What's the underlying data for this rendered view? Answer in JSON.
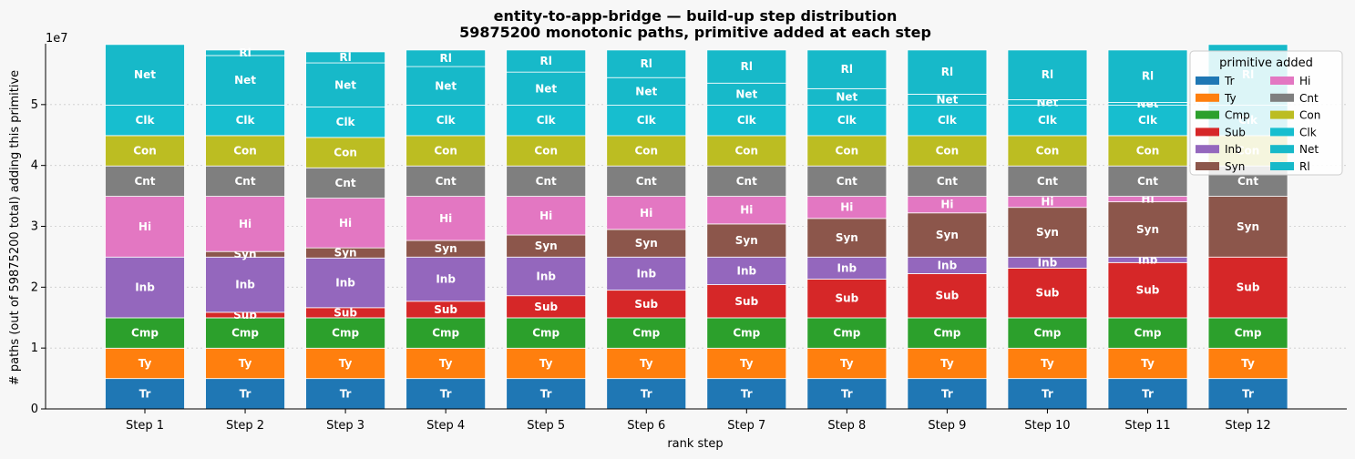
{
  "chart_data": {
    "type": "bar",
    "stacked": true,
    "title": "entity-to-app-bridge — build-up step distribution",
    "subtitle": "59875200 monotonic paths, primitive added at each step",
    "xlabel": "rank step",
    "ylabel": "# paths (out of 59875200 total) adding this primitive",
    "y_offset_label": "1e7",
    "y_scale": 10000000,
    "ylim": [
      0,
      60000000
    ],
    "yticks": [
      0,
      1,
      2,
      3,
      4,
      5
    ],
    "grid": "horizontal, dotted",
    "legend": {
      "title": "primitive added",
      "placement": "top-right",
      "columns": 2
    },
    "categories": [
      "Step 1",
      "Step 2",
      "Step 3",
      "Step 4",
      "Step 5",
      "Step 6",
      "Step 7",
      "Step 8",
      "Step 9",
      "Step 10",
      "Step 11",
      "Step 12"
    ],
    "series": [
      {
        "name": "Tr",
        "color": "#1f77b4",
        "values": [
          4989600,
          4989600,
          4989600,
          4989600,
          4989600,
          4989600,
          4989600,
          4989600,
          4989600,
          4989600,
          4989600,
          4989600
        ]
      },
      {
        "name": "Ty",
        "color": "#ff7f0e",
        "values": [
          4989600,
          4989600,
          4989600,
          4989600,
          4989600,
          4989600,
          4989600,
          4989600,
          4989600,
          4989600,
          4989600,
          4989600
        ]
      },
      {
        "name": "Cmp",
        "color": "#2ca02c",
        "values": [
          4989600,
          4989600,
          4989600,
          4989600,
          4989600,
          4989600,
          4989600,
          4989600,
          4989600,
          4989600,
          4989600,
          4989600
        ]
      },
      {
        "name": "Sub",
        "color": "#d62728",
        "values": [
          0,
          907200,
          1663200,
          2721600,
          3628800,
          4536000,
          5443200,
          6350400,
          7257600,
          8164800,
          9072000,
          9979200
        ]
      },
      {
        "name": "Inb",
        "color": "#9467bd",
        "values": [
          9979200,
          9072000,
          8164800,
          7257600,
          6350400,
          5443200,
          4536000,
          3628800,
          2721600,
          1814400,
          907200,
          0
        ]
      },
      {
        "name": "Syn",
        "color": "#8c564b",
        "values": [
          0,
          907200,
          1663200,
          2721600,
          3628800,
          4536000,
          5443200,
          6350400,
          7257600,
          8164800,
          9072000,
          9979200
        ]
      },
      {
        "name": "Hi",
        "color": "#e377c2",
        "values": [
          9979200,
          9072000,
          8164800,
          7257600,
          6350400,
          5443200,
          4536000,
          3628800,
          2721600,
          1814400,
          907200,
          0
        ]
      },
      {
        "name": "Cnt",
        "color": "#7f7f7f",
        "values": [
          4989600,
          4989600,
          4989600,
          4989600,
          4989600,
          4989600,
          4989600,
          4989600,
          4989600,
          4989600,
          4989600,
          4989600
        ]
      },
      {
        "name": "Con",
        "color": "#bcbd22",
        "values": [
          4989600,
          4989600,
          4989600,
          4989600,
          4989600,
          4989600,
          4989600,
          4989600,
          4989600,
          4989600,
          4989600,
          4989600
        ]
      },
      {
        "name": "Clk",
        "color": "#17becf",
        "values": [
          4989600,
          4989600,
          4989600,
          4989600,
          4989600,
          4989600,
          4989600,
          4989600,
          4989600,
          4989600,
          4989600,
          4989600
        ]
      },
      {
        "name": "Net",
        "color": "#17b9c9",
        "values": [
          9979200,
          8164800,
          7257600,
          6350400,
          5443200,
          4536000,
          3628800,
          2721600,
          1814400,
          907200,
          453600,
          0
        ]
      },
      {
        "name": "Rl",
        "color": "#17b9c9",
        "values": [
          0,
          907200,
          1814400,
          2721600,
          3628800,
          4536000,
          5443200,
          6350400,
          7257600,
          8164800,
          8618400,
          9979200
        ]
      }
    ]
  }
}
